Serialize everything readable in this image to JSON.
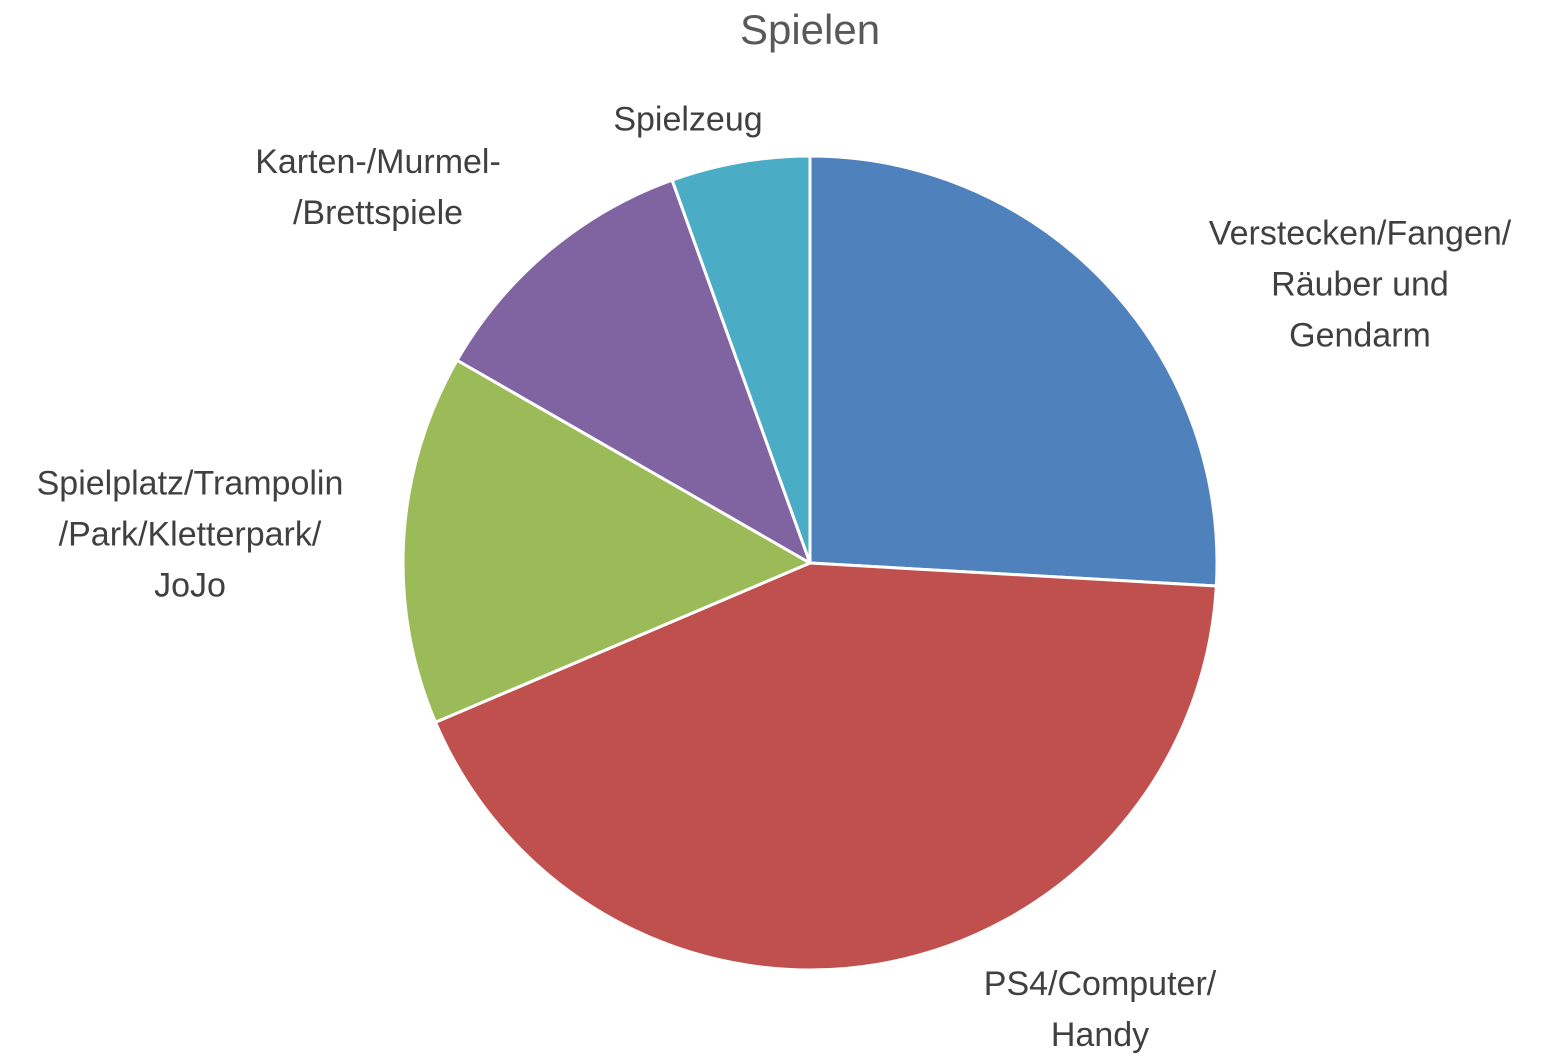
{
  "chart_data": {
    "type": "pie",
    "title": "Spielen",
    "categories": [
      "Verstecken/Fangen/\nRäuber und\nGendarm",
      "PS4/Computer/\nHandy",
      "Spielplatz/Trampolin\n/Park/Kletterpark/\nJoJo",
      "Karten-/Murmel-\n/Brettspiele",
      "Spielzeug"
    ],
    "values": [
      25.9,
      42.7,
      14.7,
      11.2,
      5.5
    ],
    "colors": [
      "#4f81bd",
      "#c0504d",
      "#9bbb59",
      "#8064a2",
      "#4bacc6"
    ]
  }
}
